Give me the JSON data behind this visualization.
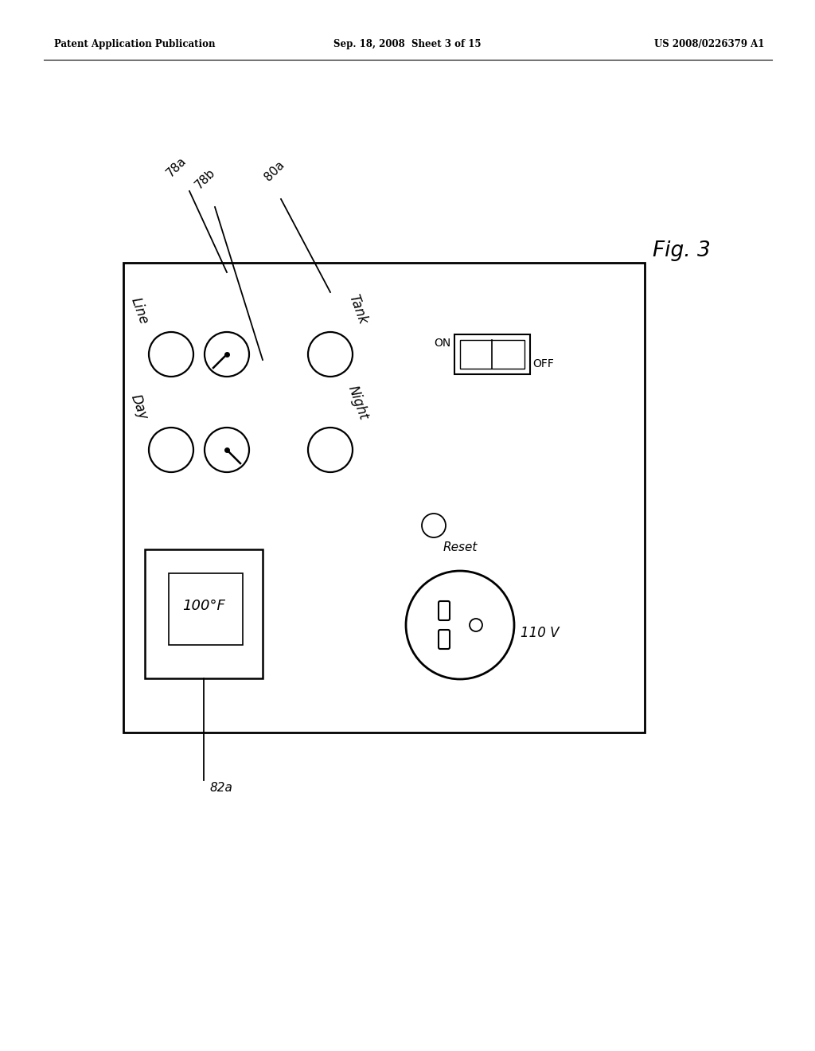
{
  "bg_color": "#ffffff",
  "header_left": "Patent Application Publication",
  "header_center": "Sep. 18, 2008  Sheet 3 of 15",
  "header_right": "US 2008/0226379 A1",
  "fig_label": "Fig. 3",
  "label_78a": "78a",
  "label_78b": "78b",
  "label_80a": "80a",
  "label_82a": "82a",
  "knob_line_label": "Line",
  "knob_day_label": "Day",
  "knob_tank_label": "Tank",
  "knob_night_label": "Night",
  "switch_on_label": "ON",
  "switch_off_label": "OFF",
  "reset_label": "Reset",
  "temp_display": "100°F",
  "outlet_label": "110 V"
}
